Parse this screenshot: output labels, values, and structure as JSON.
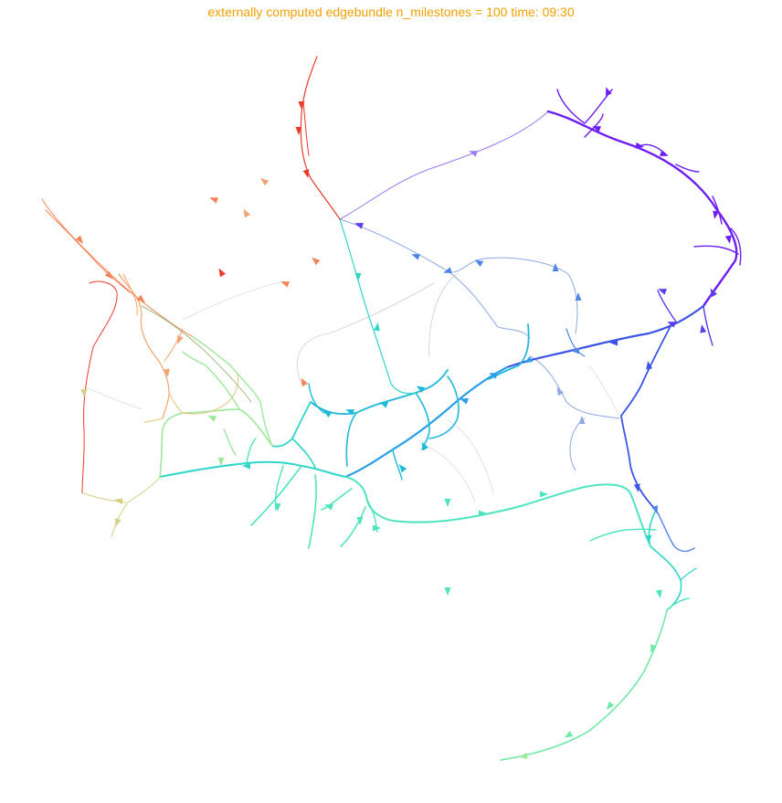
{
  "title": "externally computed edgebundle n_milestones = 100 time: 09:30",
  "colors": {
    "title": "#f0a000",
    "palette": {
      "red": "#ea3b2a",
      "salmon": "#f4845a",
      "orange": "#f3a46e",
      "tan": "#e6c47a",
      "khaki": "#d4cf83",
      "lime": "#9de89a",
      "green": "#6fe9a8",
      "aqua": "#4ee4bf",
      "teal": "#2fd6c8",
      "cyan": "#1fb9d9",
      "sky": "#2c9fe6",
      "azure": "#4f85e8",
      "blue": "#3d55e6",
      "indigo": "#5b3cf0",
      "violet": "#6d1ef3",
      "lavender": "#9b7bef",
      "periwinkle": "#8ea8e2",
      "pale": "#c9cde8",
      "mist": "#d6dee3",
      "sage": "#a6ba84"
    }
  }
}
